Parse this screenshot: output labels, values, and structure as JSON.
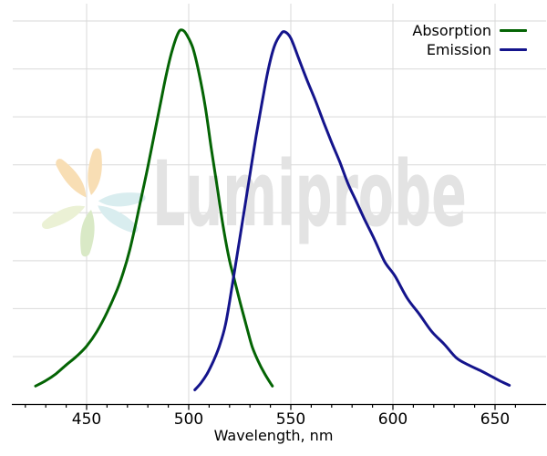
{
  "watermark": {
    "text": "Lumiprobe",
    "text_color": "#e3e3e3",
    "logo_colors": {
      "orange": "#f8deb4",
      "teal": "#d9edef",
      "green": "#d9e9c6",
      "light_green": "#ebf1d5"
    }
  },
  "legend": {
    "items": [
      {
        "label": "Absorption",
        "color": "#046404"
      },
      {
        "label": "Emission",
        "color": "#14148C"
      }
    ]
  },
  "axis": {
    "xlabel": "Wavelength, nm",
    "x_major_ticks": [
      450,
      500,
      550,
      600,
      650
    ],
    "x_minor_tick_step": 10,
    "x_minor_tick_range": [
      420,
      660
    ],
    "y_gridline_values": [
      0.125,
      0.25,
      0.375,
      0.5,
      0.625,
      0.75,
      0.875,
      1.0
    ]
  },
  "colors": {
    "background": "#ffffff",
    "gridline": "#d9d9d9",
    "axis": "#000000",
    "tick_label": "#000000"
  },
  "chart_data": {
    "type": "line",
    "title": "",
    "xlabel": "Wavelength, nm",
    "ylabel": "",
    "xlim": [
      413,
      670
    ],
    "ylim": [
      0,
      1.0
    ],
    "grid": true,
    "legend_position": "top-right",
    "series": [
      {
        "name": "Absorption",
        "color": "#046404",
        "points": [
          [
            425,
            0.048
          ],
          [
            430,
            0.062
          ],
          [
            435,
            0.08
          ],
          [
            440,
            0.103
          ],
          [
            445,
            0.125
          ],
          [
            450,
            0.152
          ],
          [
            455,
            0.19
          ],
          [
            460,
            0.24
          ],
          [
            465,
            0.3
          ],
          [
            468,
            0.345
          ],
          [
            471,
            0.4
          ],
          [
            474,
            0.47
          ],
          [
            477,
            0.545
          ],
          [
            480,
            0.62
          ],
          [
            483,
            0.7
          ],
          [
            486,
            0.78
          ],
          [
            489,
            0.86
          ],
          [
            492,
            0.925
          ],
          [
            495,
            0.97
          ],
          [
            497,
            0.976
          ],
          [
            499,
            0.964
          ],
          [
            502,
            0.93
          ],
          [
            505,
            0.865
          ],
          [
            508,
            0.78
          ],
          [
            511,
            0.67
          ],
          [
            514,
            0.565
          ],
          [
            517,
            0.46
          ],
          [
            520,
            0.375
          ],
          [
            522,
            0.333
          ],
          [
            525,
            0.27
          ],
          [
            528,
            0.21
          ],
          [
            531,
            0.152
          ],
          [
            534,
            0.113
          ],
          [
            537,
            0.082
          ],
          [
            540,
            0.056
          ],
          [
            541,
            0.048
          ]
        ]
      },
      {
        "name": "Emission",
        "color": "#14148C",
        "points": [
          [
            503,
            0.038
          ],
          [
            506,
            0.056
          ],
          [
            509,
            0.08
          ],
          [
            512,
            0.112
          ],
          [
            515,
            0.152
          ],
          [
            518,
            0.208
          ],
          [
            521,
            0.3
          ],
          [
            524,
            0.4
          ],
          [
            527,
            0.5
          ],
          [
            530,
            0.6
          ],
          [
            533,
            0.7
          ],
          [
            536,
            0.79
          ],
          [
            539,
            0.875
          ],
          [
            542,
            0.935
          ],
          [
            545,
            0.965
          ],
          [
            547,
            0.972
          ],
          [
            550,
            0.955
          ],
          [
            554,
            0.9
          ],
          [
            558,
            0.845
          ],
          [
            562,
            0.793
          ],
          [
            566,
            0.737
          ],
          [
            570,
            0.683
          ],
          [
            574,
            0.632
          ],
          [
            578,
            0.576
          ],
          [
            582,
            0.53
          ],
          [
            586,
            0.484
          ],
          [
            591,
            0.43
          ],
          [
            596,
            0.372
          ],
          [
            601,
            0.335
          ],
          [
            607,
            0.277
          ],
          [
            613,
            0.235
          ],
          [
            619,
            0.19
          ],
          [
            625,
            0.158
          ],
          [
            631,
            0.122
          ],
          [
            637,
            0.103
          ],
          [
            643,
            0.088
          ],
          [
            649,
            0.071
          ],
          [
            653,
            0.06
          ],
          [
            657,
            0.05
          ]
        ]
      }
    ]
  }
}
